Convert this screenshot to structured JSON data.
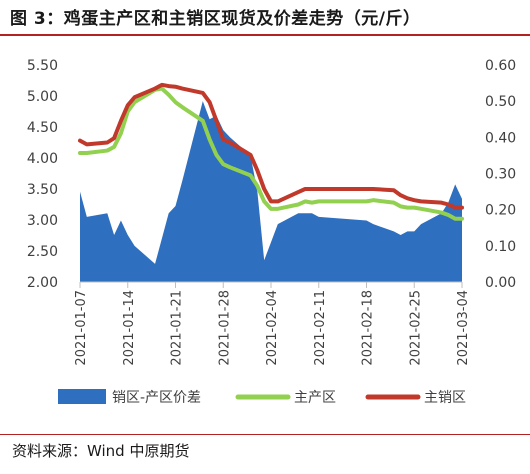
{
  "title": "图 3：鸡蛋主产区和主销区现货及价差走势（元/斤）",
  "source": "资料来源：Wind  中原期货",
  "chart_data": {
    "type": "line",
    "title": "图 3：鸡蛋主产区和主销区现货及价差走势（元/斤）",
    "x_ticks": [
      "2021-01-07",
      "2021-01-14",
      "2021-01-21",
      "2021-01-28",
      "2021-02-04",
      "2021-02-11",
      "2021-02-18",
      "2021-02-25",
      "2021-03-04"
    ],
    "x": [
      "2021-01-07",
      "2021-01-08",
      "2021-01-11",
      "2021-01-12",
      "2021-01-13",
      "2021-01-14",
      "2021-01-15",
      "2021-01-18",
      "2021-01-19",
      "2021-01-20",
      "2021-01-21",
      "2021-01-22",
      "2021-01-25",
      "2021-01-26",
      "2021-01-27",
      "2021-01-28",
      "2021-01-29",
      "2021-02-01",
      "2021-02-02",
      "2021-02-03",
      "2021-02-04",
      "2021-02-05",
      "2021-02-08",
      "2021-02-09",
      "2021-02-10",
      "2021-02-11",
      "2021-02-18",
      "2021-02-19",
      "2021-02-22",
      "2021-02-23",
      "2021-02-24",
      "2021-02-25",
      "2021-02-26",
      "2021-03-01",
      "2021-03-02",
      "2021-03-03",
      "2021-03-04"
    ],
    "y_left_ticks": [
      "2.00",
      "2.50",
      "3.00",
      "3.50",
      "4.00",
      "4.50",
      "5.00",
      "5.50"
    ],
    "y_right_ticks": [
      "0.00",
      "0.10",
      "0.20",
      "0.30",
      "0.40",
      "0.50",
      "0.60"
    ],
    "ylim_left": [
      2.0,
      5.5
    ],
    "ylim_right": [
      0.0,
      0.6
    ],
    "series": [
      {
        "name": "销区-产区价差",
        "type": "area",
        "axis": "right",
        "color": "#2e6fc0",
        "values": [
          0.25,
          0.18,
          0.19,
          0.13,
          0.17,
          0.13,
          0.1,
          0.05,
          0.12,
          0.19,
          0.21,
          0.28,
          0.5,
          0.45,
          0.46,
          0.42,
          0.4,
          0.35,
          0.25,
          0.06,
          0.11,
          0.16,
          0.19,
          0.19,
          0.19,
          0.18,
          0.17,
          0.16,
          0.14,
          0.13,
          0.14,
          0.14,
          0.16,
          0.19,
          0.22,
          0.27,
          0.23
        ]
      },
      {
        "name": "主产区",
        "type": "line",
        "axis": "left",
        "color": "#92d050",
        "values": [
          4.08,
          4.08,
          4.12,
          4.18,
          4.4,
          4.75,
          4.9,
          5.1,
          5.12,
          5.02,
          4.9,
          4.82,
          4.6,
          4.3,
          4.05,
          3.9,
          3.85,
          3.72,
          3.55,
          3.3,
          3.18,
          3.18,
          3.25,
          3.3,
          3.28,
          3.3,
          3.3,
          3.32,
          3.28,
          3.22,
          3.2,
          3.2,
          3.18,
          3.12,
          3.08,
          3.02,
          3.02
        ]
      },
      {
        "name": "主销区",
        "type": "line",
        "axis": "left",
        "color": "#c0392b",
        "values": [
          4.28,
          4.22,
          4.25,
          4.32,
          4.6,
          4.85,
          4.98,
          5.12,
          5.18,
          5.16,
          5.15,
          5.12,
          5.05,
          4.9,
          4.6,
          4.3,
          4.25,
          4.05,
          3.8,
          3.5,
          3.3,
          3.3,
          3.45,
          3.5,
          3.5,
          3.5,
          3.5,
          3.5,
          3.48,
          3.4,
          3.35,
          3.32,
          3.3,
          3.28,
          3.25,
          3.2,
          3.2
        ]
      }
    ],
    "legend_position": "bottom",
    "grid": false
  }
}
